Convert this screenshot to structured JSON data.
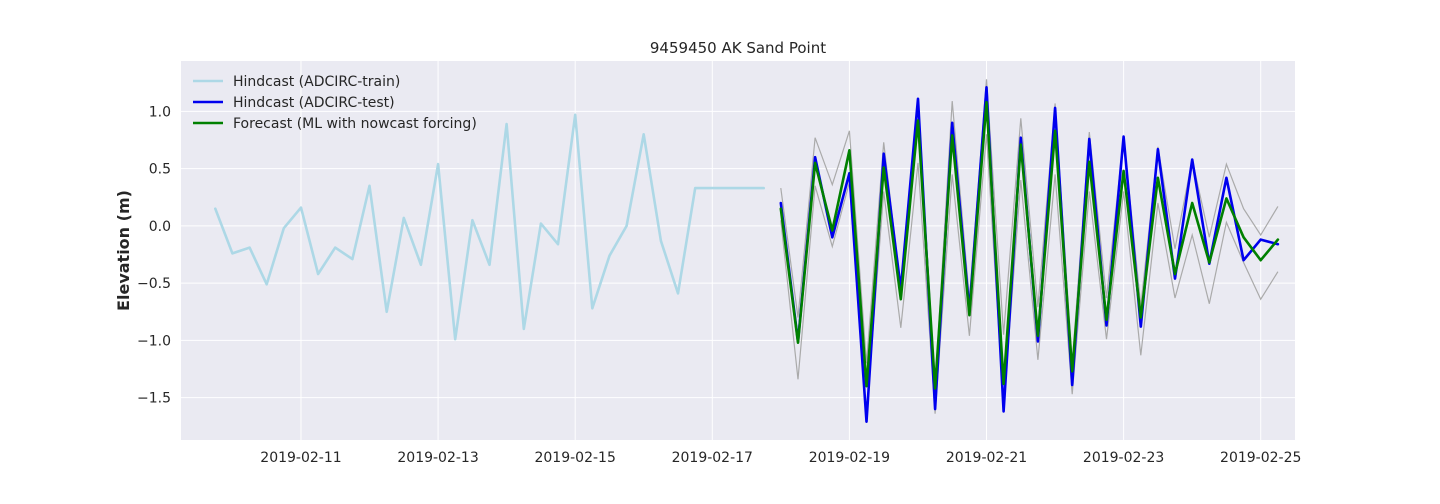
{
  "chart_data": {
    "type": "line",
    "title": "9459450 AK Sand Point",
    "xlabel": "",
    "ylabel": "Elevation (m)",
    "x_unit": "days since 2019-02-10 00:00",
    "xlim": [
      9.25,
      25.5
    ],
    "ylim": [
      -1.87,
      1.44
    ],
    "xticks": [
      11,
      13,
      15,
      17,
      19,
      21,
      23,
      25
    ],
    "xtick_labels": [
      "2019-02-11",
      "2019-02-13",
      "2019-02-15",
      "2019-02-17",
      "2019-02-19",
      "2019-02-21",
      "2019-02-23",
      "2019-02-25"
    ],
    "yticks": [
      -1.5,
      -1.0,
      -0.5,
      0.0,
      0.5,
      1.0
    ],
    "ytick_labels": [
      "−1.5",
      "−1.0",
      "−0.5",
      "0.0",
      "0.5",
      "1.0"
    ],
    "grid": true,
    "legend_position": "top-left",
    "bounds": {
      "name": "Forecast bounds",
      "color": "#aaaaaa",
      "upper": {
        "x": [
          18.0,
          18.25,
          18.5,
          18.75,
          19.0,
          19.25,
          19.5,
          19.75,
          20.0,
          20.25,
          20.5,
          20.75,
          21.0,
          21.25,
          21.5,
          21.75,
          22.0,
          22.25,
          22.5,
          22.75,
          23.0,
          23.25,
          23.5,
          23.75,
          24.0,
          24.25,
          24.5,
          24.75,
          25.0,
          25.25
        ],
        "y": [
          0.33,
          -0.8,
          0.77,
          0.36,
          0.83,
          -1.2,
          0.73,
          -0.55,
          1.1,
          -1.4,
          1.09,
          -0.64,
          1.28,
          -0.95,
          0.94,
          -0.71,
          1.07,
          -1.2,
          0.82,
          -0.63,
          0.78,
          -0.7,
          0.69,
          -0.2,
          0.58,
          -0.1,
          0.54,
          0.15,
          -0.08,
          0.17
        ]
      },
      "lower": {
        "x": [
          18.0,
          18.25,
          18.5,
          18.75,
          19.0,
          19.25,
          19.5,
          19.75,
          20.0,
          20.25,
          20.5,
          20.75,
          21.0,
          21.25,
          21.5,
          21.75,
          22.0,
          22.25,
          22.5,
          22.75,
          23.0,
          23.25,
          23.5,
          23.75,
          24.0,
          24.25,
          24.5,
          24.75,
          25.0,
          25.25
        ],
        "y": [
          0.05,
          -1.34,
          0.35,
          -0.18,
          0.38,
          -1.65,
          0.3,
          -0.89,
          0.55,
          -1.64,
          0.45,
          -0.96,
          0.8,
          -1.58,
          0.4,
          -1.17,
          0.45,
          -1.47,
          0.3,
          -0.99,
          0.3,
          -1.13,
          0.2,
          -0.63,
          -0.08,
          -0.68,
          0.03,
          -0.32,
          -0.64,
          -0.4
        ]
      }
    },
    "series": [
      {
        "name": "Hindcast (ADCIRC-train)",
        "color": "#add8e6",
        "x": [
          9.75,
          10.0,
          10.25,
          10.5,
          10.75,
          11.0,
          11.25,
          11.5,
          11.75,
          12.0,
          12.25,
          12.5,
          12.75,
          13.0,
          13.25,
          13.5,
          13.75,
          14.0,
          14.25,
          14.5,
          14.75,
          15.0,
          15.25,
          15.5,
          15.75,
          16.0,
          16.25,
          16.5,
          16.75,
          17.0,
          17.25,
          17.5,
          17.75
        ],
        "y": [
          0.15,
          -0.24,
          -0.19,
          -0.51,
          -0.02,
          0.16,
          -0.42,
          -0.19,
          -0.29,
          0.35,
          -0.75,
          0.07,
          -0.34,
          0.54,
          -0.99,
          0.05,
          -0.34,
          0.89,
          -0.9,
          0.02,
          -0.16,
          0.97,
          -0.72,
          -0.26,
          0.0,
          0.8,
          -0.13,
          -0.59,
          0.33,
          0.33,
          0.33,
          0.33,
          0.33
        ]
      },
      {
        "name": "Hindcast (ADCIRC-test)",
        "color": "#0000ee",
        "x": [
          18.0,
          18.25,
          18.5,
          18.75,
          19.0,
          19.25,
          19.5,
          19.75,
          20.0,
          20.25,
          20.5,
          20.75,
          21.0,
          21.25,
          21.5,
          21.75,
          22.0,
          22.25,
          22.5,
          22.75,
          23.0,
          23.25,
          23.5,
          23.75,
          24.0,
          24.25,
          24.5,
          24.75,
          25.0,
          25.25
        ],
        "y": [
          0.2,
          -1.01,
          0.6,
          -0.1,
          0.46,
          -1.71,
          0.63,
          -0.55,
          1.11,
          -1.6,
          0.9,
          -0.74,
          1.21,
          -1.62,
          0.77,
          -1.01,
          1.03,
          -1.39,
          0.76,
          -0.87,
          0.78,
          -0.88,
          0.67,
          -0.46,
          0.58,
          -0.33,
          0.42,
          -0.3,
          -0.12,
          -0.16
        ]
      },
      {
        "name": "Forecast (ML with nowcast forcing)",
        "color": "#008000",
        "x": [
          18.0,
          18.25,
          18.5,
          18.75,
          19.0,
          19.25,
          19.5,
          19.75,
          20.0,
          20.25,
          20.5,
          20.75,
          21.0,
          21.25,
          21.5,
          21.75,
          22.0,
          22.25,
          22.5,
          22.75,
          23.0,
          23.25,
          23.5,
          23.75,
          24.0,
          24.25,
          24.5,
          24.75,
          25.0,
          25.25
        ],
        "y": [
          0.15,
          -1.02,
          0.55,
          -0.04,
          0.66,
          -1.4,
          0.51,
          -0.64,
          0.92,
          -1.42,
          0.79,
          -0.78,
          1.08,
          -1.38,
          0.71,
          -0.96,
          0.83,
          -1.27,
          0.56,
          -0.82,
          0.48,
          -0.8,
          0.42,
          -0.42,
          0.2,
          -0.32,
          0.24,
          -0.1,
          -0.3,
          -0.12
        ]
      }
    ]
  }
}
